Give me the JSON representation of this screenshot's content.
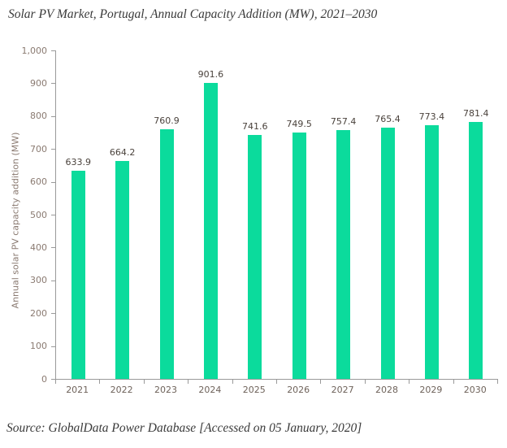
{
  "title": "Solar PV Market, Portugal, Annual Capacity Addition (MW), 2021–2030",
  "source": "Source: GlobalData Power Database [Accessed on 05 January, 2020]",
  "chart_data": {
    "type": "bar",
    "title": "Solar PV Market, Portugal, Annual Capacity Addition (MW), 2021–2030",
    "categories": [
      "2021",
      "2022",
      "2023",
      "2024",
      "2025",
      "2026",
      "2027",
      "2028",
      "2029",
      "2030"
    ],
    "values": [
      633.9,
      664.2,
      760.9,
      901.6,
      741.6,
      749.5,
      757.4,
      765.4,
      773.4,
      781.4
    ],
    "value_labels": [
      "633.9",
      "664.2",
      "760.9",
      "901.6",
      "741.6",
      "749.5",
      "757.4",
      "765.4",
      "773.4",
      "781.4"
    ],
    "xlabel": "",
    "ylabel": "Annual solar PV capacity addition (MW)",
    "ylim": [
      0,
      1000
    ],
    "ytick_values": [
      0,
      100,
      200,
      300,
      400,
      500,
      600,
      700,
      800,
      900,
      1000
    ],
    "ytick_labels": [
      "0",
      "100",
      "200",
      "300",
      "400",
      "500",
      "600",
      "700",
      "800",
      "900",
      "1,000"
    ],
    "grid": false,
    "legend_position": "none",
    "colors": {
      "bar": "#0bdb9c",
      "axis_line": "#9a9a9a",
      "ytick_text": "#8a7a71",
      "xtick_text": "#6e625a",
      "value_label_text": "#4a423c",
      "title_text": "#3a3a3a"
    }
  }
}
